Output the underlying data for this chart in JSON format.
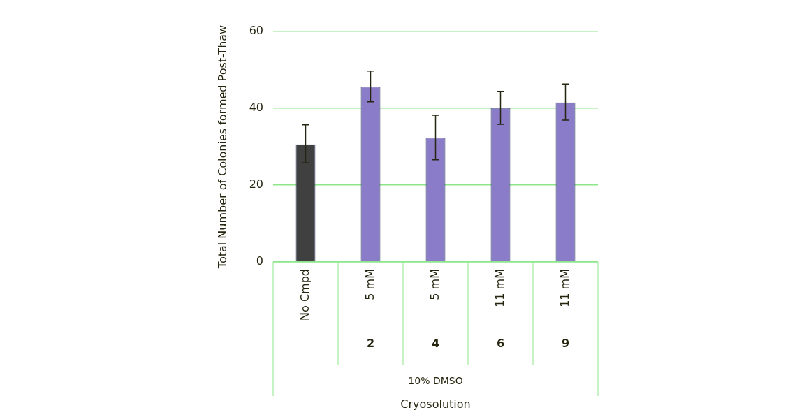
{
  "chart_data": {
    "type": "bar",
    "ylabel": "Total Number of Colonies formed Post-Thaw",
    "categories": [
      "No Cmpd",
      "5 mM\n2",
      "5 mM\n4",
      "11 mM\n6",
      "11 mM\n9"
    ],
    "values": [
      30.6,
      45.6,
      32.3,
      40.1,
      41.5
    ],
    "colors": [
      "#404040",
      "#8a7cc8",
      "#8a7cc8",
      "#8a7cc8",
      "#8a7cc8"
    ],
    "errors": [
      [
        25.8,
        35.7
      ],
      [
        41.7,
        49.7
      ],
      [
        26.6,
        38.2
      ],
      [
        35.8,
        44.4
      ],
      [
        36.9,
        46.3
      ]
    ],
    "ylim": [
      0,
      60
    ],
    "yticks": [
      0,
      20,
      40,
      60
    ],
    "grid": "y",
    "annotations": [
      "10% DMSO",
      "Cryosolution"
    ]
  }
}
